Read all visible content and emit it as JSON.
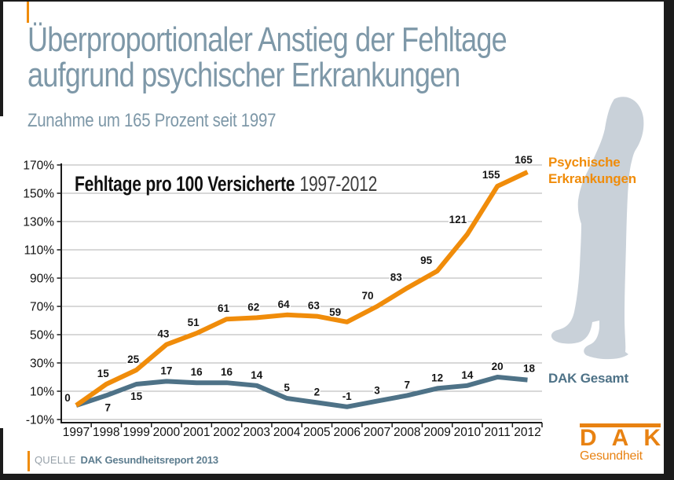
{
  "header": {
    "title_line1": "Überproportionaler Anstieg der Fehltage",
    "title_line2": "aufgrund psychischer Erkrankungen",
    "subtitle": "Zunahme um 165 Prozent seit 1997"
  },
  "chart_data": {
    "type": "line",
    "title_bold": "Fehltage pro 100 Versicherte",
    "title_period": "1997-2012",
    "categories": [
      "1997",
      "1998",
      "1999",
      "2000",
      "2001",
      "2002",
      "2003",
      "2004",
      "2005",
      "2006",
      "2007",
      "2008",
      "2009",
      "2010",
      "2011",
      "2012"
    ],
    "series": [
      {
        "name": "Psychische Erkrankungen",
        "color": "#f08c0a",
        "values": [
          0,
          15,
          25,
          43,
          51,
          61,
          62,
          64,
          63,
          59,
          70,
          83,
          95,
          121,
          155,
          165
        ]
      },
      {
        "name": "DAK Gesamt",
        "color": "#4e7287",
        "values": [
          0,
          7,
          15,
          17,
          16,
          16,
          14,
          5,
          2,
          -1,
          3,
          7,
          12,
          14,
          20,
          18
        ]
      }
    ],
    "ylim": [
      -10,
      170
    ],
    "ytick_step": 20,
    "ytick_suffix": "%",
    "grid": true,
    "legend_position": "right",
    "xlabel": "",
    "ylabel": ""
  },
  "legend": {
    "series1": "Psychische Erkrankungen",
    "series2": "DAK Gesamt"
  },
  "source": {
    "label": "QUELLE",
    "text": "DAK Gesundheitsreport 2013"
  },
  "logo": {
    "letters": [
      "D",
      "A",
      "K"
    ],
    "name": "DAK",
    "tagline": "Gesundheit"
  },
  "colors": {
    "orange": "#f08c0a",
    "steel_blue": "#4e7287",
    "title_gray_blue": "#7e98a8",
    "silhouette": "#c9d1d9",
    "grid_gray": "#b0b0b0"
  }
}
